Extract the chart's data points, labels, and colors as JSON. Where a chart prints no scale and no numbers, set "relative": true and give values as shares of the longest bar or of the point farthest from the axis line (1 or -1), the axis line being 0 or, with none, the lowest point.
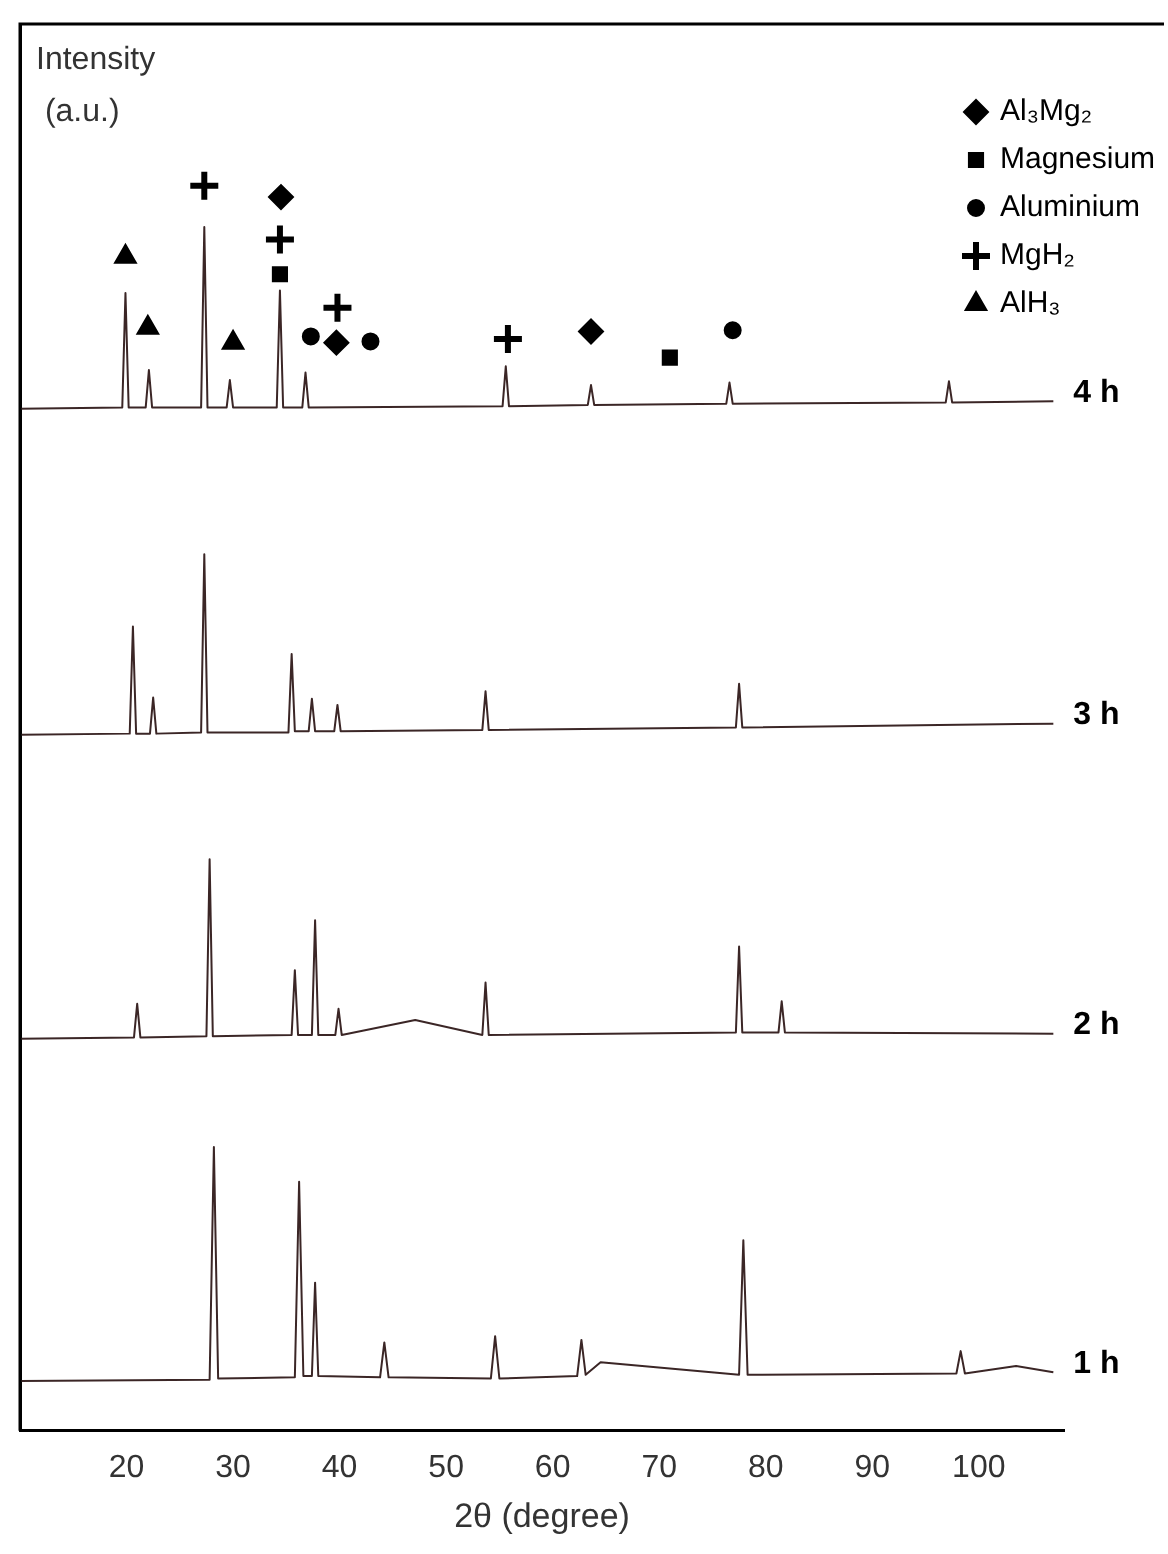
{
  "chart_data": {
    "type": "line",
    "relative": true,
    "xlabel": "2θ (degree)",
    "ylabel": "Intensity (a.u.)",
    "xlim": [
      10,
      108
    ],
    "xticks": [
      20,
      30,
      40,
      50,
      60,
      70,
      80,
      90,
      100
    ],
    "grid": false,
    "legend": "top right",
    "series": [
      {
        "name": "1 h",
        "type": "line",
        "color": "#3b2626",
        "marker": "none",
        "x": [
          10,
          27.8,
          28.2,
          28.6,
          35.8,
          36.2,
          36.6,
          37.4,
          37.7,
          38.0,
          43.8,
          44.2,
          44.6,
          54.2,
          54.6,
          55.0,
          62.3,
          62.7,
          63.1,
          64.5,
          77.5,
          77.9,
          78.3,
          97.9,
          98.3,
          98.7,
          103.5,
          107
        ],
        "values": [
          0.04,
          0.041,
          0.228,
          0.042,
          0.043,
          0.2,
          0.044,
          0.044,
          0.119,
          0.044,
          0.043,
          0.071,
          0.043,
          0.042,
          0.076,
          0.042,
          0.044,
          0.073,
          0.045,
          0.055,
          0.045,
          0.153,
          0.045,
          0.046,
          0.064,
          0.046,
          0.052,
          0.047
        ]
      },
      {
        "name": "2 h",
        "type": "line",
        "color": "#3b2626",
        "marker": "none",
        "x": [
          10,
          20.7,
          21.0,
          21.3,
          27.5,
          27.8,
          28.1,
          35.5,
          35.8,
          36.1,
          37.4,
          37.7,
          38.0,
          39.6,
          39.9,
          40.2,
          47.1,
          53.4,
          53.7,
          54.0,
          77.2,
          77.5,
          77.8,
          81.2,
          81.5,
          81.8,
          107
        ],
        "values": [
          0.315,
          0.316,
          0.343,
          0.316,
          0.317,
          0.459,
          0.317,
          0.318,
          0.37,
          0.318,
          0.318,
          0.41,
          0.318,
          0.318,
          0.339,
          0.318,
          0.33,
          0.318,
          0.36,
          0.318,
          0.32,
          0.389,
          0.32,
          0.32,
          0.345,
          0.32,
          0.319
        ]
      },
      {
        "name": "3 h",
        "type": "line",
        "color": "#3b2626",
        "marker": "none",
        "x": [
          10,
          20.3,
          20.6,
          20.9,
          22.2,
          22.5,
          22.8,
          27.0,
          27.3,
          27.6,
          35.2,
          35.5,
          35.8,
          37.1,
          37.4,
          37.7,
          39.5,
          39.8,
          40.1,
          53.4,
          53.7,
          54.0,
          77.2,
          77.5,
          77.8,
          107
        ],
        "values": [
          0.559,
          0.56,
          0.646,
          0.56,
          0.56,
          0.589,
          0.56,
          0.561,
          0.704,
          0.561,
          0.561,
          0.624,
          0.562,
          0.562,
          0.588,
          0.562,
          0.562,
          0.583,
          0.562,
          0.563,
          0.594,
          0.563,
          0.565,
          0.6,
          0.565,
          0.568
        ]
      },
      {
        "name": "4 h",
        "type": "line",
        "color": "#3b2626",
        "marker": "none",
        "x": [
          10,
          19.6,
          19.9,
          20.2,
          21.8,
          22.1,
          22.4,
          27.0,
          27.3,
          27.6,
          29.4,
          29.7,
          30.0,
          34.1,
          34.4,
          34.7,
          36.5,
          36.8,
          37.1,
          55.3,
          55.6,
          55.9,
          63.3,
          63.6,
          63.9,
          76.3,
          76.6,
          76.9,
          96.9,
          97.2,
          97.5,
          107
        ],
        "values": [
          0.821,
          0.822,
          0.914,
          0.822,
          0.822,
          0.852,
          0.822,
          0.822,
          0.967,
          0.822,
          0.822,
          0.844,
          0.822,
          0.822,
          0.916,
          0.822,
          0.822,
          0.85,
          0.822,
          0.823,
          0.855,
          0.823,
          0.824,
          0.84,
          0.824,
          0.825,
          0.842,
          0.825,
          0.826,
          0.843,
          0.826,
          0.827
        ]
      },
      {
        "name": "Al₃Mg₂",
        "type": "scatter",
        "color": "#000000",
        "marker": "diamond",
        "x": [
          34.5,
          39.7,
          63.6
        ],
        "values": [
          0.991,
          0.874,
          0.883
        ]
      },
      {
        "name": "Magnesium",
        "type": "scatter",
        "color": "#000000",
        "marker": "square",
        "x": [
          34.4,
          71.0
        ],
        "values": [
          0.929,
          0.862
        ]
      },
      {
        "name": "Aluminium",
        "type": "scatter",
        "color": "#000000",
        "marker": "circle",
        "x": [
          37.3,
          42.9,
          76.9
        ],
        "values": [
          0.879,
          0.875,
          0.884
        ]
      },
      {
        "name": "MgH₂",
        "type": "scatter",
        "color": "#000000",
        "marker": "cross",
        "x": [
          27.3,
          34.4,
          39.8,
          55.8
        ],
        "values": [
          1.0,
          0.957,
          0.902,
          0.877
        ]
      },
      {
        "name": "AlH₃",
        "type": "scatter",
        "color": "#000000",
        "marker": "triangle",
        "x": [
          19.9,
          22.0,
          30.0
        ],
        "values": [
          0.943,
          0.886,
          0.874
        ]
      }
    ]
  }
}
